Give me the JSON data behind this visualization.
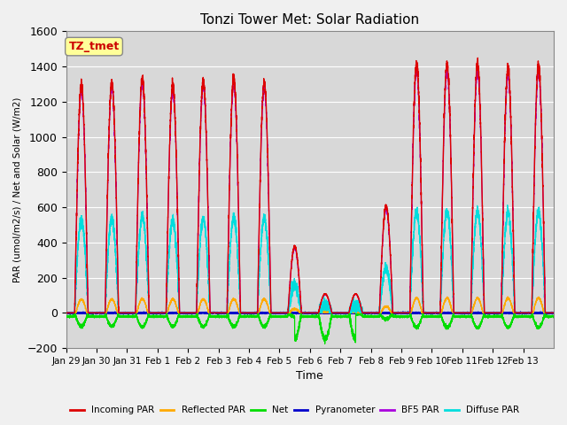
{
  "title": "Tonzi Tower Met: Solar Radiation",
  "ylabel": "PAR (umol/m2/s) / Net and Solar (W/m2)",
  "xlabel": "Time",
  "ylim": [
    -200,
    1600
  ],
  "background_color": "#f0f0f0",
  "plot_bg_color": "#d8d8d8",
  "series": {
    "incoming_par": {
      "color": "#dd0000",
      "label": "Incoming PAR"
    },
    "reflected_par": {
      "color": "#ffaa00",
      "label": "Reflected PAR"
    },
    "net": {
      "color": "#00dd00",
      "label": "Net"
    },
    "pyranometer": {
      "color": "#0000cc",
      "label": "Pyranometer"
    },
    "bf5_par": {
      "color": "#aa00dd",
      "label": "BF5 PAR"
    },
    "diffuse_par": {
      "color": "#00dddd",
      "label": "Diffuse PAR"
    }
  },
  "tz_label": "TZ_tmet",
  "tz_color": "#cc0000",
  "tz_bg": "#ffff99",
  "n_days": 16,
  "tick_labels": [
    "Jan 29",
    "Jan 30",
    "Jan 31",
    "Feb 1",
    "Feb 2",
    "Feb 3",
    "Feb 4",
    "Feb 5",
    "Feb 6",
    "Feb 7",
    "Feb 8",
    "Feb 9",
    "Feb 10",
    "Feb 11",
    "Feb 12",
    "Feb 13"
  ],
  "tick_positions": [
    0,
    1,
    2,
    3,
    4,
    5,
    6,
    7,
    8,
    9,
    10,
    11,
    12,
    13,
    14,
    15
  ]
}
